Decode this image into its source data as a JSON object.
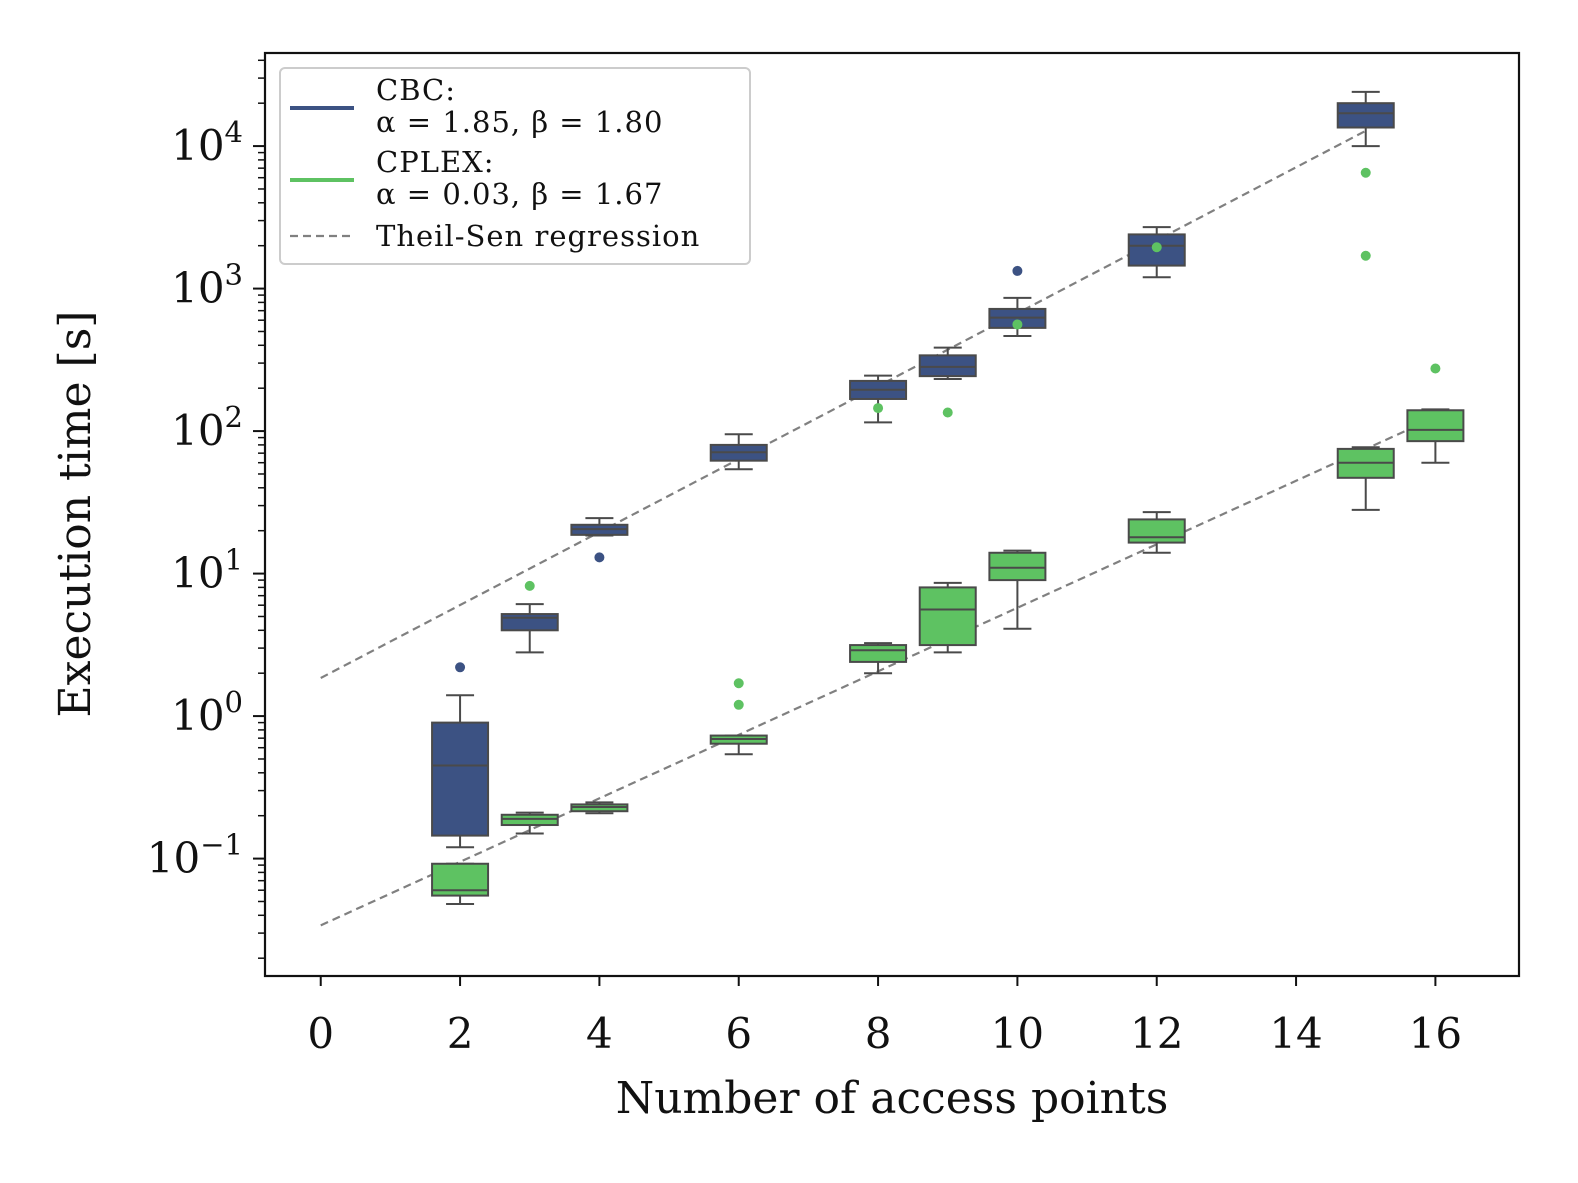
{
  "chart_data": {
    "type": "box",
    "title": "",
    "xlabel": "Number of access points",
    "ylabel": "Execution time [s]",
    "yscale": "log",
    "xlim": [
      -0.8,
      17.2
    ],
    "ylim": [
      0.015,
      45000
    ],
    "x_ticks": [
      0,
      2,
      4,
      6,
      8,
      10,
      12,
      14,
      16
    ],
    "x_tick_labels": [
      "0",
      "2",
      "4",
      "6",
      "8",
      "10",
      "12",
      "14",
      "16"
    ],
    "y_ticks": [
      {
        "value": 0.1,
        "base": "10",
        "exp": "−1"
      },
      {
        "value": 1,
        "base": "10",
        "exp": "0"
      },
      {
        "value": 10,
        "base": "10",
        "exp": "1"
      },
      {
        "value": 100,
        "base": "10",
        "exp": "2"
      },
      {
        "value": 1000,
        "base": "10",
        "exp": "3"
      },
      {
        "value": 10000,
        "base": "10",
        "exp": "4"
      }
    ],
    "legend_position": "top-left",
    "series": [
      {
        "name": "CBC",
        "legend_title": "CBC:",
        "legend_params": "α = 1.85, β = 1.80",
        "color": "#3c5283",
        "boxes": [
          {
            "x": 2,
            "whislo": 0.12,
            "q1": 0.145,
            "med": 0.45,
            "q3": 0.9,
            "whishi": 1.4,
            "fliers": [
              2.2
            ]
          },
          {
            "x": 3,
            "whislo": 2.8,
            "q1": 4.0,
            "med": 4.9,
            "q3": 5.2,
            "whishi": 6.1,
            "fliers": []
          },
          {
            "x": 4,
            "whislo": 18.5,
            "q1": 18.7,
            "med": 20.5,
            "q3": 22.0,
            "whishi": 24.5,
            "fliers": [
              13
            ]
          },
          {
            "x": 6,
            "whislo": 54,
            "q1": 62,
            "med": 71,
            "q3": 80,
            "whishi": 95,
            "fliers": []
          },
          {
            "x": 8,
            "whislo": 115,
            "q1": 168,
            "med": 195,
            "q3": 225,
            "whishi": 245,
            "fliers": []
          },
          {
            "x": 9,
            "whislo": 232,
            "q1": 243,
            "med": 282,
            "q3": 340,
            "whishi": 385,
            "fliers": []
          },
          {
            "x": 10,
            "whislo": 465,
            "q1": 530,
            "med": 625,
            "q3": 720,
            "whishi": 860,
            "fliers": [
              1330
            ]
          },
          {
            "x": 12,
            "whislo": 1200,
            "q1": 1450,
            "med": 2000,
            "q3": 2400,
            "whishi": 2700,
            "fliers": []
          },
          {
            "x": 15,
            "whislo": 10000,
            "q1": 13500,
            "med": 17000,
            "q3": 20000,
            "whishi": 24000,
            "fliers": []
          }
        ],
        "regression": {
          "x": [
            0,
            15
          ],
          "y": [
            1.85,
            12800
          ]
        }
      },
      {
        "name": "CPLEX",
        "legend_title": "CPLEX:",
        "legend_params": "α = 0.03, β = 1.67",
        "color": "#5ec262",
        "boxes": [
          {
            "x": 2,
            "whislo": 0.048,
            "q1": 0.055,
            "med": 0.06,
            "q3": 0.092,
            "whishi": 0.092,
            "fliers": []
          },
          {
            "x": 3,
            "whislo": 0.15,
            "q1": 0.172,
            "med": 0.19,
            "q3": 0.203,
            "whishi": 0.21,
            "fliers": [
              8.2
            ]
          },
          {
            "x": 4,
            "whislo": 0.208,
            "q1": 0.215,
            "med": 0.23,
            "q3": 0.24,
            "whishi": 0.248,
            "fliers": []
          },
          {
            "x": 6,
            "whislo": 0.54,
            "q1": 0.64,
            "med": 0.69,
            "q3": 0.73,
            "whishi": 0.73,
            "fliers": [
              1.2,
              1.7
            ]
          },
          {
            "x": 8,
            "whislo": 2.0,
            "q1": 2.4,
            "med": 2.9,
            "q3": 3.15,
            "whishi": 3.25,
            "fliers": [
              145
            ]
          },
          {
            "x": 9,
            "whislo": 2.8,
            "q1": 3.15,
            "med": 5.6,
            "q3": 8.0,
            "whishi": 8.6,
            "fliers": [
              135
            ]
          },
          {
            "x": 10,
            "whislo": 4.1,
            "q1": 9.0,
            "med": 11.0,
            "q3": 14.0,
            "whishi": 14.5,
            "fliers": [
              560
            ]
          },
          {
            "x": 12,
            "whislo": 14,
            "q1": 16.5,
            "med": 18,
            "q3": 24,
            "whishi": 27,
            "fliers": [
              1950
            ]
          },
          {
            "x": 15,
            "whislo": 28,
            "q1": 47,
            "med": 60,
            "q3": 75,
            "whishi": 77,
            "fliers": [
              1700,
              6500
            ]
          },
          {
            "x": 16,
            "whislo": 60,
            "q1": 85,
            "med": 102,
            "q3": 140,
            "whishi": 142,
            "fliers": [
              275
            ]
          }
        ],
        "regression": {
          "x": [
            0,
            16
          ],
          "y": [
            0.034,
            125
          ]
        }
      }
    ],
    "regression_label": "Theil-Sen regression",
    "regression_color": "#808080"
  }
}
